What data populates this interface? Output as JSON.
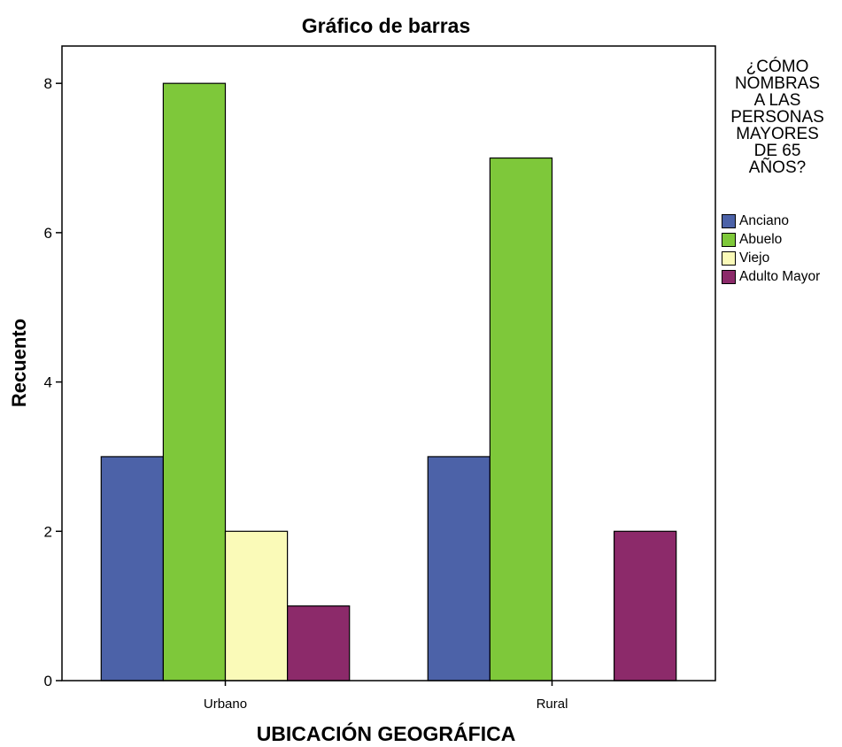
{
  "chart_data": {
    "type": "bar",
    "title": "Gráfico de barras",
    "xlabel": "UBICACIÓN GEOGRÁFICA",
    "ylabel": "Recuento",
    "categories": [
      "Urbano",
      "Rural"
    ],
    "series": [
      {
        "name": "Anciano",
        "values": [
          3,
          3
        ],
        "color": "#4c62a8"
      },
      {
        "name": "Abuelo",
        "values": [
          8,
          7
        ],
        "color": "#7ec83a"
      },
      {
        "name": "Viejo",
        "values": [
          2,
          0
        ],
        "color": "#fafab8"
      },
      {
        "name": "Adulto Mayor",
        "values": [
          1,
          2
        ],
        "color": "#8c2a6a"
      }
    ],
    "ylim": [
      0,
      8.5
    ],
    "yticks": [
      0,
      2,
      4,
      6,
      8
    ],
    "legend": {
      "title": "¿CÓMO\nNOMBRAS\nA LAS\nPERSONAS\nMAYORES\nDE 65\nAÑOS?",
      "position": "right"
    },
    "grid": false
  }
}
